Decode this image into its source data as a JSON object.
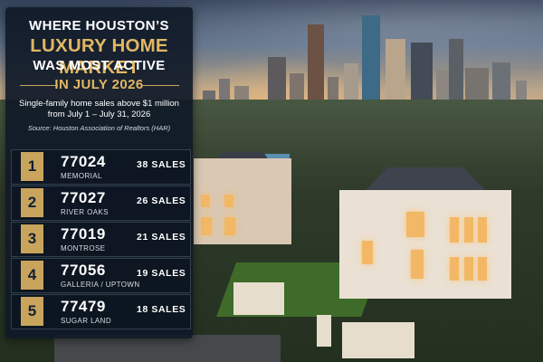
{
  "title": {
    "line1": "WHERE HOUSTON’S",
    "line2": "LUXURY HOME MARKET",
    "line3": "WAS MOST ACTIVE",
    "line4": "IN JULY 2026"
  },
  "subtitle_line1": "Single-family home sales above $1 million",
  "subtitle_line2": "from July 1 – July 31, 2026",
  "source": "Source: Houston Association of Realtors (HAR)",
  "rankings": [
    {
      "rank": "1",
      "zip": "77024",
      "area": "MEMORIAL",
      "sales": "38 SALES"
    },
    {
      "rank": "2",
      "zip": "77027",
      "area": "RIVER OAKS",
      "sales": "26 SALES"
    },
    {
      "rank": "3",
      "zip": "77019",
      "area": "MONTROSE",
      "sales": "21 SALES"
    },
    {
      "rank": "4",
      "zip": "77056",
      "area": "GALLERIA / UPTOWN",
      "sales": "19 SALES"
    },
    {
      "rank": "5",
      "zip": "77479",
      "area": "SUGAR LAND",
      "sales": "18 SALES"
    }
  ],
  "colors": {
    "panel_bg": "#101a28",
    "gold": "#e1b765",
    "rank_badge": "#c9a45c",
    "text": "#ffffff"
  }
}
